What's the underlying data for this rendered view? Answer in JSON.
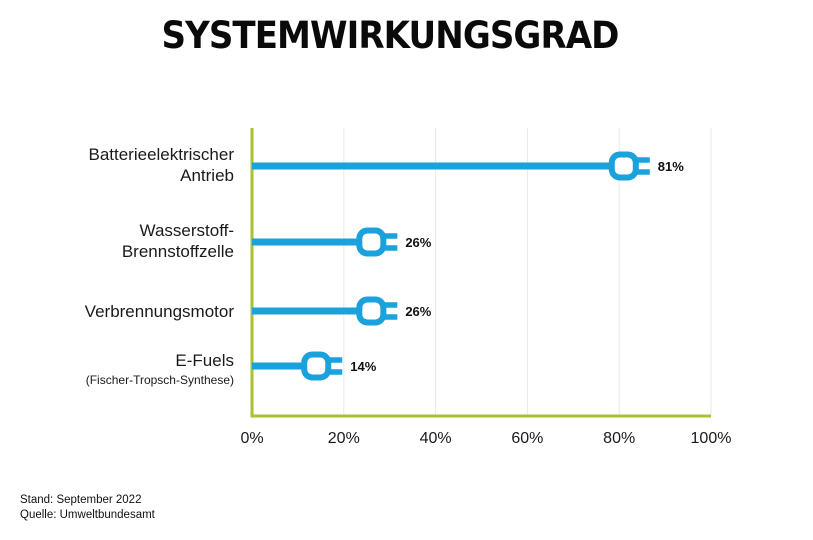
{
  "colors": {
    "bar": "#1ba1dc",
    "axis": "#a8c234",
    "grid": "#e6e9ef",
    "text": "#1a1a1a"
  },
  "footer": {
    "stand": "Stand: September 2022",
    "quelle": "Quelle: Umweltbundesamt"
  },
  "chart_data": {
    "type": "bar",
    "orientation": "horizontal",
    "title": "SYSTEMWIRKUNGSGRAD",
    "categories": [
      {
        "label_lines": [
          "Batterieelektrischer",
          "Antrieb"
        ],
        "sub": ""
      },
      {
        "label_lines": [
          "Wasserstoff-",
          "Brennstoffzelle"
        ],
        "sub": ""
      },
      {
        "label_lines": [
          "Verbrennungsmotor"
        ],
        "sub": ""
      },
      {
        "label_lines": [
          "E-Fuels"
        ],
        "sub": "(Fischer-Tropsch-Synthese)"
      }
    ],
    "values": [
      81,
      26,
      26,
      14
    ],
    "value_labels": [
      "81%",
      "26%",
      "26%",
      "14%"
    ],
    "xlim": [
      0,
      100
    ],
    "xticks": [
      0,
      20,
      40,
      60,
      80,
      100
    ],
    "xtick_labels": [
      "0%",
      "20%",
      "40%",
      "60%",
      "80%",
      "100%"
    ],
    "grid": true,
    "bar_end_icon": "plug-icon"
  }
}
